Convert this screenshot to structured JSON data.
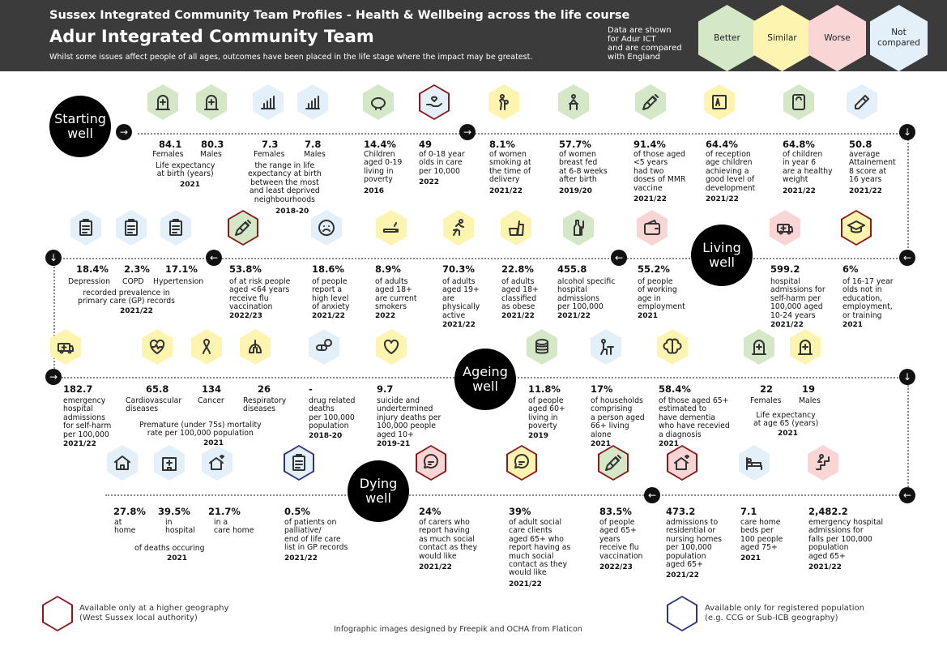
{
  "header": {
    "title_small": "Sussex Integrated Community Team Profiles - Health & Wellbeing across the life course",
    "title_large": "Adur Integrated Community Team",
    "subtitle": "Whilst some issues affect people of all ages, outcomes have been placed in the life stage where the impact may be greatest.",
    "note": "Data are shown\nfor Adur ICT\nand are compared\nwith England",
    "legend": [
      {
        "label": "Better",
        "color": "#d4e8c8"
      },
      {
        "label": "Similar",
        "color": "#fdf4b0"
      },
      {
        "label": "Worse",
        "color": "#f9d5d5"
      },
      {
        "label": "Not\ncompared",
        "color": "#e3f0f9"
      }
    ]
  },
  "colors": {
    "better": "#d4e8c8",
    "similar": "#fdf4b0",
    "worse": "#f9d5d5",
    "not_compared": "#e3f0f9",
    "ring_red": "#8b1a1a",
    "ring_blue": "#2c3580"
  },
  "stages": {
    "starting": "Starting\nwell",
    "living": "Living\nwell",
    "ageing": "Ageing\nwell",
    "dying": "Dying\nwell"
  },
  "sections": {
    "life_exp_birth": "Life expectancy\nat birth (years)",
    "life_exp_birth_year": "2021",
    "le_gap": "the range in life\nexpectancy at birth\nbetween the most\nand least deprived\nneighbourhoods",
    "le_gap_year": "2018-20",
    "prevalence": "recorded prevalence in\nprimary care (GP) records",
    "prevalence_year": "2021/22",
    "premature": "Premature (under 75s) mortality\nrate per 100,000 population",
    "premature_year": "2021",
    "le65": "Life expectancy\nat age 65 (years)",
    "le65_year": "2021",
    "deaths": "of deaths occuring",
    "deaths_year": "2021"
  },
  "starting": [
    {
      "value": "84.1",
      "label": "Females",
      "icon": "gravestone-icon",
      "fill": "better"
    },
    {
      "value": "80.3",
      "label": "Males",
      "icon": "gravestone-icon",
      "fill": "better"
    },
    {
      "value": "7.3",
      "label": "Females",
      "icon": "bar-chart-icon",
      "fill": "not_compared"
    },
    {
      "value": "7.8",
      "label": "Males",
      "icon": "bar-chart-icon",
      "fill": "not_compared"
    },
    {
      "value": "14.4%",
      "label": "Children\naged 0-19\nliving in\npoverty",
      "year": "2016",
      "icon": "piggy-bank-icon",
      "fill": "better"
    },
    {
      "value": "49",
      "label": "of 0-18 year\nolds in care\nper 10,000",
      "year": "2022",
      "icon": "heart-hand-icon",
      "fill": "not_compared",
      "ring": "ring_red"
    },
    {
      "value": "8.1%",
      "label": "of women\nsmoking at\nthe time of\ndelivery",
      "year": "2021/22",
      "icon": "mother-baby-icon",
      "fill": "similar"
    },
    {
      "value": "57.7%",
      "label": "of women\nbreast fed\nat 6-8 weeks\nafter birth",
      "year": "2019/20",
      "icon": "breastfeeding-icon",
      "fill": "better"
    },
    {
      "value": "91.4%",
      "label": "of those aged\n<5 years\nhad two\ndoses of MMR\nvaccine",
      "year": "2021/22",
      "icon": "syringe-icon",
      "fill": "better"
    },
    {
      "value": "64.4%",
      "label": "of reception\nage children\nachieving a\ngood level of\ndevelopment",
      "year": "2021/22",
      "icon": "abc-blocks-icon",
      "fill": "similar"
    },
    {
      "value": "64.8%",
      "label": "of children\nin year 6\nare a healthy\nweight",
      "year": "2021/22",
      "icon": "scale-icon",
      "fill": "better"
    },
    {
      "value": "50.8",
      "label": "average\nAttainement\n8 score at\n16 years",
      "year": "2021/22",
      "icon": "pencil-sharpener-icon",
      "fill": "not_compared"
    }
  ],
  "living": [
    {
      "value": "18.4%",
      "label": "Depression",
      "icon": "clipboard-icon",
      "fill": "not_compared"
    },
    {
      "value": "2.3%",
      "label": "COPD",
      "icon": "clipboard-icon",
      "fill": "not_compared"
    },
    {
      "value": "17.1%",
      "label": "Hypertension",
      "icon": "clipboard-icon",
      "fill": "not_compared"
    },
    {
      "value": "53.8%",
      "label": "of at risk people\naged <64 years\nreceive flu\nvaccination",
      "year": "2022/23",
      "icon": "syringe-icon",
      "fill": "better",
      "ring": "ring_red"
    },
    {
      "value": "18.6%",
      "label": "of people\nreport a\nhigh level\nof anxiety",
      "year": "2021/22",
      "icon": "sad-face-icon",
      "fill": "not_compared"
    },
    {
      "value": "8.9%",
      "label": "of adults\naged 18+\nare current\nsmokers",
      "year": "2022",
      "icon": "cigarette-icon",
      "fill": "similar"
    },
    {
      "value": "70.3%",
      "label": "of adults\naged 19+\nare\nphysically\nactive",
      "year": "2021/22",
      "icon": "running-icon",
      "fill": "similar"
    },
    {
      "value": "22.8%",
      "label": "of adults\naged 18+\nclassified\nas obese",
      "year": "2021/22",
      "icon": "fast-food-icon",
      "fill": "similar"
    },
    {
      "value": "455.8",
      "label": "alcohol specific\nhospital\nadmissions\nper 100,000",
      "year": "2021/22",
      "icon": "wine-bottle-icon",
      "fill": "better"
    },
    {
      "value": "55.2%",
      "label": "of people\nof working\nage in\nemployment",
      "year": "2021",
      "icon": "wallet-icon",
      "fill": "worse"
    },
    {
      "value": "599.2",
      "label": "hospital\nadmissions for\nself-harm per\n100,000 aged\n10-24 years",
      "year": "2021/22",
      "icon": "ambulance-icon",
      "fill": "worse"
    },
    {
      "value": "6%",
      "label": "of 16-17 year\nolds not in\neducation,\nemployment,\nor training",
      "year": "2021",
      "icon": "grad-cap-icon",
      "fill": "similar",
      "ring": "ring_red"
    }
  ],
  "ageing": [
    {
      "value": "182.7",
      "label": "emergency\nhospital\nadmissions\nfor self-harm\nper 100,000",
      "year": "2021/22",
      "icon": "ambulance-icon",
      "fill": "similar"
    },
    {
      "value": "65.8",
      "label": "Cardiovascular\ndiseases",
      "icon": "heart-pulse-icon",
      "fill": "similar"
    },
    {
      "value": "134",
      "label": "Cancer",
      "icon": "ribbon-icon",
      "fill": "similar"
    },
    {
      "value": "26",
      "label": "Respiratory\ndiseases",
      "icon": "lungs-icon",
      "fill": "similar"
    },
    {
      "value": "-",
      "label": "drug related\ndeaths\nper 100,000\npopulation",
      "year": "2018-20",
      "icon": "pills-icon",
      "fill": "not_compared"
    },
    {
      "value": "9.7",
      "label": "suicide and\nundertermined\ninjury deaths per\n100,000 people\naged 10+",
      "year": "2019-21",
      "icon": "heart-icon",
      "fill": "similar"
    },
    {
      "value": "11.8%",
      "label": "of people\naged 60+\nliving in\npoverty",
      "year": "2019",
      "icon": "coins-icon",
      "fill": "better"
    },
    {
      "value": "17%",
      "label": "of households\ncomprising\na person aged\n66+ living\nalone",
      "year": "2021",
      "icon": "person-table-icon",
      "fill": "not_compared"
    },
    {
      "value": "58.4%",
      "label": "of those aged 65+\nestimated to\nhave dementia\nwho have recevied\na diagnosis",
      "year": "2021",
      "icon": "brain-icon",
      "fill": "similar"
    },
    {
      "value": "22",
      "label": "Females",
      "icon": "gravestone-icon",
      "fill": "better"
    },
    {
      "value": "19",
      "label": "Males",
      "icon": "gravestone-icon",
      "fill": "similar"
    }
  ],
  "dying": [
    {
      "value": "27.8%",
      "label": "at\nhome",
      "icon": "house-icon",
      "fill": "not_compared"
    },
    {
      "value": "39.5%",
      "label": "in\nhospital",
      "icon": "hospital-icon",
      "fill": "not_compared"
    },
    {
      "value": "21.7%",
      "label": "in a\ncare home",
      "icon": "care-home-icon",
      "fill": "not_compared"
    },
    {
      "value": "0.5%",
      "label": "of patients on\npalliative/\nend of life care\nlist in GP records",
      "year": "2021/22",
      "icon": "clipboard-icon",
      "fill": "not_compared",
      "ring": "ring_blue"
    },
    {
      "value": "24%",
      "label": "of carers who\nreport having\nas much social\ncontact as they\nwould like",
      "year": "2021/22",
      "icon": "chat-icon",
      "fill": "worse",
      "ring": "ring_red"
    },
    {
      "value": "39%",
      "label": "of adult social\ncare clients\naged 65+ who\nreport having as\nmuch social\ncontact as they\nwould like",
      "year": "2021/22",
      "icon": "chat-icon",
      "fill": "similar",
      "ring": "ring_red"
    },
    {
      "value": "83.5%",
      "label": "of people\naged 65+\nyears\nreceive flu\nvaccination",
      "year": "2022/23",
      "icon": "syringe-icon",
      "fill": "better",
      "ring": "ring_red"
    },
    {
      "value": "473.2",
      "label": "admissions to\nresidential or\nnursing homes\nper 100,000\npopulation\naged 65+",
      "year": "2021/22",
      "icon": "care-home-icon",
      "fill": "worse",
      "ring": "ring_red"
    },
    {
      "value": "7.1",
      "label": "care home\nbeds per\n100 people\naged 75+",
      "year": "2021",
      "icon": "bed-icon",
      "fill": "not_compared"
    },
    {
      "value": "2,482.2",
      "label": "emergency hospital\nadmissions for\nfalls per 100,000\npopulation\naged 65+",
      "year": "2021/22",
      "icon": "fall-stairs-icon",
      "fill": "worse"
    }
  ],
  "legend_bottom": {
    "higher_geo": "Available only at a higher geography\n(West Sussex local authority)",
    "registered": "Available only for registered population\n(e.g. CCG or Sub-ICB geography)"
  },
  "footer": "Infographic images designed by Freepik and OCHA from Flaticon"
}
